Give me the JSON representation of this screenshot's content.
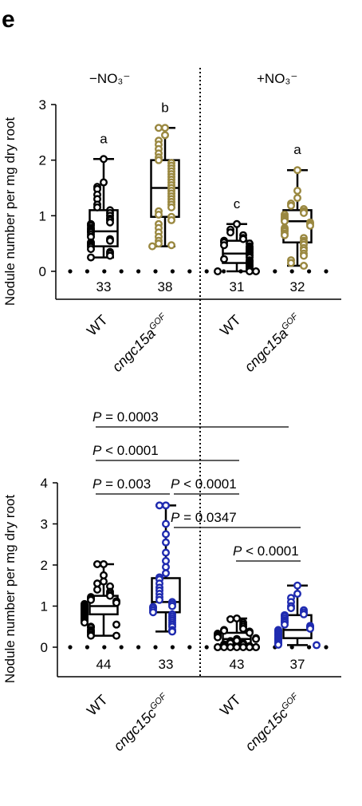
{
  "panel_label": "e",
  "conditions": {
    "minus": "−NO₃⁻",
    "plus": "+NO₃⁻"
  },
  "colors": {
    "black": "#000000",
    "gold": "#9a8840",
    "blue": "#1f2bb0"
  },
  "chart_data": [
    {
      "type": "box",
      "ylabel": "Nodule number per mg dry root",
      "ylim": [
        -0.5,
        3
      ],
      "yticks": [
        "0",
        "1",
        "2",
        "3"
      ],
      "categories": [
        "WT",
        "cngc15a^GOF",
        "WT",
        "cngc15a^GOF"
      ],
      "tick_labels": [
        {
          "base": "WT",
          "sup": ""
        },
        {
          "base": "cngc15a",
          "sup": "GOF"
        },
        {
          "base": "WT",
          "sup": ""
        },
        {
          "base": "cngc15a",
          "sup": "GOF"
        }
      ],
      "groups": [
        {
          "condition": "−NO₃⁻",
          "n": "33",
          "letter": "a",
          "color": "#000000",
          "min": 0.25,
          "q1": 0.45,
          "median": 0.72,
          "q3": 1.1,
          "max": 2.02,
          "points": [
            2.02,
            1.6,
            1.52,
            1.48,
            1.38,
            1.3,
            1.2,
            1.15,
            1.1,
            1.05,
            1.0,
            0.95,
            0.92,
            0.88,
            0.85,
            0.82,
            0.78,
            0.75,
            0.72,
            0.7,
            0.66,
            0.62,
            0.58,
            0.55,
            0.52,
            0.5,
            0.47,
            0.44,
            0.4,
            0.35,
            0.32,
            0.28,
            0.25
          ]
        },
        {
          "condition": "−NO₃⁻",
          "n": "38",
          "letter": "b",
          "color": "#9a8840",
          "min": 0.45,
          "q1": 0.98,
          "median": 1.5,
          "q3": 2.0,
          "max": 2.58,
          "points": [
            2.58,
            2.58,
            2.45,
            2.35,
            2.28,
            2.2,
            2.12,
            2.05,
            2.0,
            1.95,
            1.9,
            1.85,
            1.8,
            1.75,
            1.7,
            1.65,
            1.6,
            1.55,
            1.5,
            1.45,
            1.4,
            1.35,
            1.3,
            1.25,
            1.2,
            1.15,
            1.08,
            1.02,
            0.98,
            0.92,
            0.85,
            0.78,
            0.7,
            0.62,
            0.55,
            0.5,
            0.47,
            0.45
          ]
        },
        {
          "condition": "+NO₃⁻",
          "n": "31",
          "letter": "c",
          "color": "#000000",
          "min": 0.0,
          "q1": 0.15,
          "median": 0.32,
          "q3": 0.55,
          "max": 0.85,
          "points": [
            0.85,
            0.75,
            0.7,
            0.65,
            0.6,
            0.58,
            0.55,
            0.52,
            0.5,
            0.47,
            0.45,
            0.42,
            0.4,
            0.38,
            0.35,
            0.33,
            0.3,
            0.28,
            0.25,
            0.22,
            0.2,
            0.18,
            0.15,
            0.12,
            0.1,
            0.08,
            0.05,
            0.03,
            0.0,
            0.0,
            0.0
          ]
        },
        {
          "condition": "+NO₃⁻",
          "n": "32",
          "letter": "a",
          "color": "#9a8840",
          "min": 0.1,
          "q1": 0.52,
          "median": 0.9,
          "q3": 1.1,
          "max": 1.82,
          "points": [
            1.82,
            1.45,
            1.32,
            1.22,
            1.18,
            1.12,
            1.08,
            1.05,
            1.02,
            0.98,
            0.95,
            0.92,
            0.9,
            0.88,
            0.85,
            0.82,
            0.78,
            0.75,
            0.72,
            0.68,
            0.65,
            0.6,
            0.55,
            0.52,
            0.48,
            0.42,
            0.38,
            0.32,
            0.28,
            0.2,
            0.15,
            0.1
          ]
        }
      ]
    },
    {
      "type": "box",
      "ylabel": "Nodule number per mg dry root",
      "ylim": [
        -0.7,
        4
      ],
      "yticks": [
        "0",
        "1",
        "2",
        "3",
        "4"
      ],
      "categories": [
        "WT",
        "cngc15c^GOF",
        "WT",
        "cngc15c^GOF"
      ],
      "tick_labels": [
        {
          "base": "WT",
          "sup": ""
        },
        {
          "base": "cngc15c",
          "sup": "GOF"
        },
        {
          "base": "WT",
          "sup": ""
        },
        {
          "base": "cngc15c",
          "sup": "GOF"
        }
      ],
      "groups": [
        {
          "condition": "−NO₃⁻",
          "n": "44",
          "letter": "",
          "color": "#000000",
          "min": 0.28,
          "q1": 0.8,
          "median": 1.0,
          "q3": 1.25,
          "max": 2.02,
          "points": [
            2.02,
            2.02,
            1.75,
            1.6,
            1.55,
            1.48,
            1.4,
            1.35,
            1.3,
            1.25,
            1.22,
            1.18,
            1.15,
            1.12,
            1.1,
            1.08,
            1.05,
            1.02,
            1.0,
            0.98,
            0.95,
            0.92,
            0.9,
            0.88,
            0.85,
            0.82,
            0.8,
            0.78,
            0.75,
            0.72,
            0.7,
            0.68,
            0.65,
            0.62,
            0.6,
            0.55,
            0.5,
            0.48,
            0.42,
            0.38,
            0.35,
            0.3,
            0.28,
            0.28
          ]
        },
        {
          "condition": "−NO₃⁻",
          "n": "33",
          "letter": "",
          "color": "#1f2bb0",
          "min": 0.38,
          "q1": 0.85,
          "median": 1.1,
          "q3": 1.68,
          "max": 3.45,
          "points": [
            3.45,
            3.45,
            3.0,
            2.75,
            2.55,
            2.3,
            2.1,
            1.95,
            1.8,
            1.7,
            1.65,
            1.55,
            1.45,
            1.38,
            1.3,
            1.22,
            1.15,
            1.1,
            1.05,
            1.0,
            0.98,
            0.95,
            0.9,
            0.85,
            0.8,
            0.75,
            0.7,
            0.65,
            0.6,
            0.55,
            0.5,
            0.42,
            0.38
          ]
        },
        {
          "condition": "+NO₃⁻",
          "n": "43",
          "letter": "",
          "color": "#000000",
          "min": 0.0,
          "q1": 0.08,
          "median": 0.2,
          "q3": 0.35,
          "max": 0.7,
          "points": [
            0.7,
            0.68,
            0.6,
            0.55,
            0.5,
            0.45,
            0.42,
            0.4,
            0.38,
            0.35,
            0.33,
            0.3,
            0.28,
            0.26,
            0.24,
            0.22,
            0.2,
            0.2,
            0.18,
            0.16,
            0.15,
            0.14,
            0.12,
            0.1,
            0.1,
            0.08,
            0.07,
            0.06,
            0.05,
            0.04,
            0.03,
            0.02,
            0.01,
            0.0,
            0.0,
            0.0,
            0.0,
            0.0,
            0.0,
            0.0,
            0.0,
            0.0,
            0.0
          ]
        },
        {
          "condition": "+NO₃⁻",
          "n": "37",
          "letter": "",
          "color": "#1f2bb0",
          "min": 0.05,
          "q1": 0.22,
          "median": 0.42,
          "q3": 0.78,
          "max": 1.5,
          "points": [
            1.5,
            1.3,
            1.2,
            1.1,
            1.0,
            0.95,
            0.9,
            0.85,
            0.8,
            0.78,
            0.75,
            0.7,
            0.65,
            0.62,
            0.6,
            0.55,
            0.52,
            0.5,
            0.48,
            0.45,
            0.42,
            0.4,
            0.38,
            0.35,
            0.32,
            0.3,
            0.28,
            0.25,
            0.22,
            0.2,
            0.18,
            0.15,
            0.12,
            0.1,
            0.08,
            0.06,
            0.05
          ]
        }
      ],
      "comparisons": [
        {
          "text": "P = 0.0003",
          "from": 0,
          "to": 3
        },
        {
          "text": "P < 0.0001",
          "from": 0,
          "to": 2
        },
        {
          "text": "P = 0.003",
          "from": 0,
          "to": 1
        },
        {
          "text": "P < 0.0001",
          "from": 1,
          "to": 2
        },
        {
          "text": "P = 0.0347",
          "from": 1,
          "to": 3
        },
        {
          "text": "P < 0.0001",
          "from": 2,
          "to": 3
        }
      ]
    }
  ]
}
